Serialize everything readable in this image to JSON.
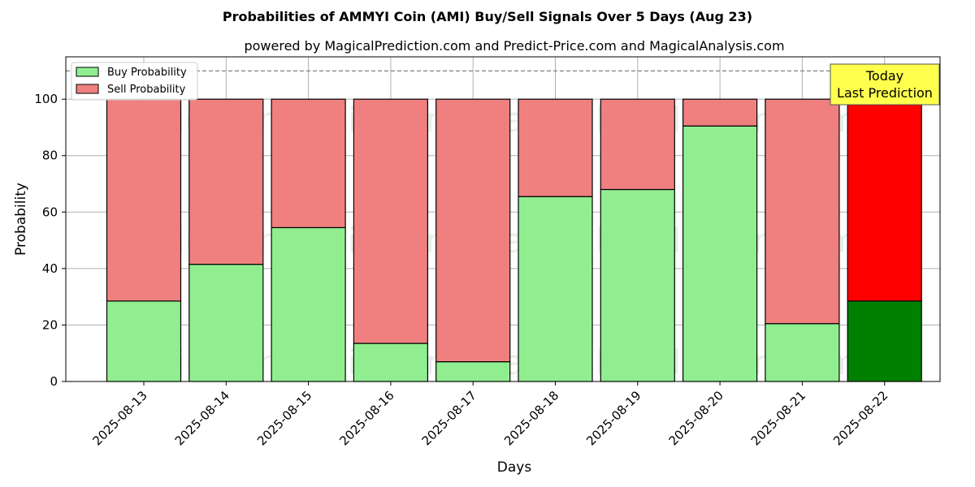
{
  "chart_data": {
    "type": "bar",
    "stacked": true,
    "title": "Probabilities of AMMYI Coin (AMI) Buy/Sell Signals Over 5 Days (Aug 23)",
    "subtitle": "powered by MagicalPrediction.com and Predict-Price.com and MagicalAnalysis.com",
    "xlabel": "Days",
    "ylabel": "Probability",
    "ylim": [
      0,
      115
    ],
    "yticks": [
      0,
      20,
      40,
      60,
      80,
      100
    ],
    "grid": true,
    "legend_position": "top-left",
    "reference_line": 110,
    "categories": [
      "2025-08-13",
      "2025-08-14",
      "2025-08-15",
      "2025-08-16",
      "2025-08-17",
      "2025-08-18",
      "2025-08-19",
      "2025-08-20",
      "2025-08-21",
      "2025-08-22"
    ],
    "series": [
      {
        "name": "Buy Probability",
        "color": "#90ee90",
        "highlight_color": "#008000",
        "values": [
          28.5,
          41.5,
          54.5,
          13.5,
          7.0,
          65.5,
          68.0,
          90.5,
          20.5,
          28.5
        ]
      },
      {
        "name": "Sell Probability",
        "color": "#f08080",
        "highlight_color": "#ff0000",
        "values": [
          71.5,
          58.5,
          45.5,
          86.5,
          93.0,
          34.5,
          32.0,
          9.5,
          79.5,
          71.5
        ]
      }
    ],
    "highlight_index": 9,
    "annotation": {
      "line1": "Today",
      "line2": "Last Prediction",
      "background": "#ffff4d"
    },
    "watermarks": [
      "MagicalAnalysis.com",
      "MagicalPrediction.com"
    ]
  }
}
